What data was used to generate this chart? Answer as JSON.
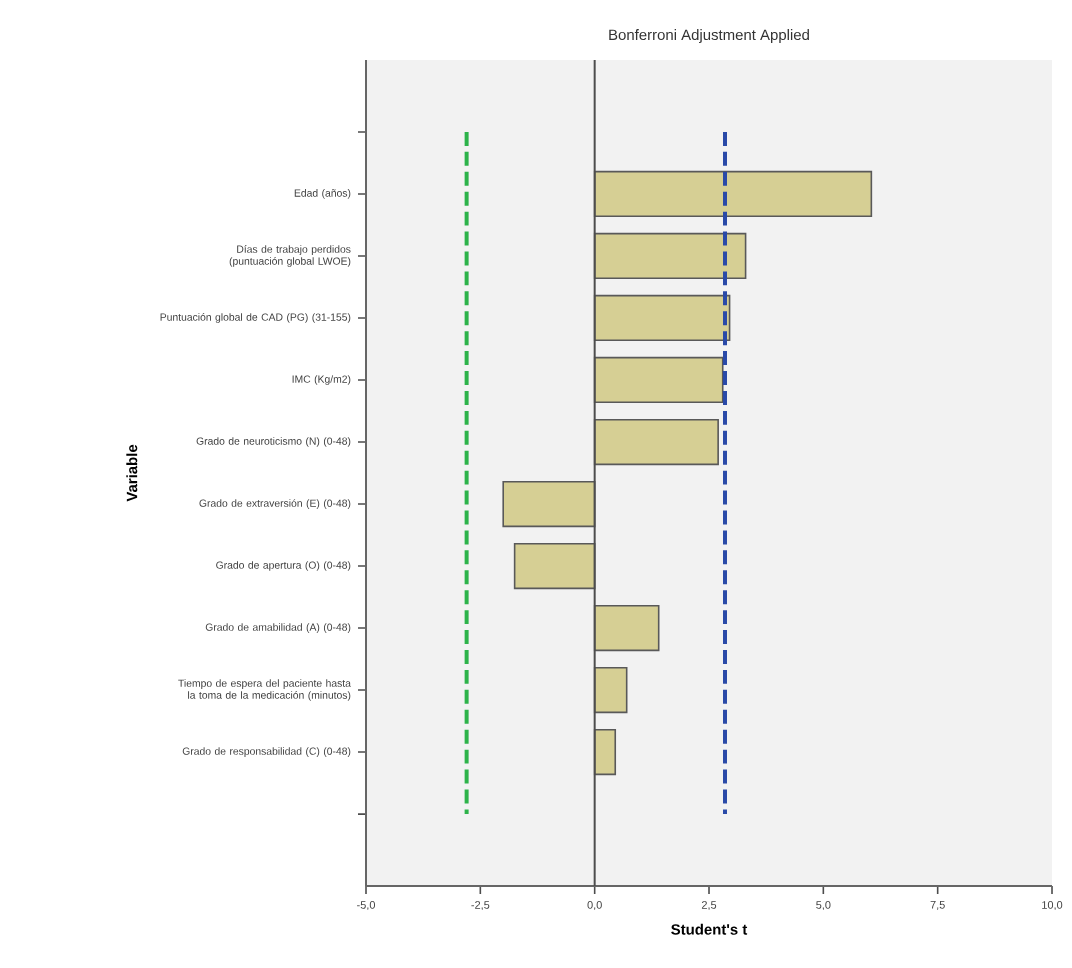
{
  "chart_data": {
    "type": "bar",
    "orientation": "horizontal",
    "title": "Bonferroni Adjustment Applied",
    "xlabel": "Student's t",
    "ylabel": "Variable",
    "categories": [
      null,
      "Edad (años)",
      "Días de trabajo perdidos (puntuación global LWOE)",
      "Puntuación global de CAD (PG) (31-155)",
      "IMC (Kg/m2)",
      "Grado de neuroticismo (N) (0-48)",
      "Grado de extraversión (E) (0-48)",
      "Grado de apertura (O) (0-48)",
      "Grado de amabilidad (A) (0-48)",
      "Tiempo de espera del paciente hasta la toma de la medicación (minutos)",
      "Grado de responsabilidad (C) (0-48)",
      null
    ],
    "values": [
      null,
      6.05,
      3.3,
      2.95,
      2.8,
      2.7,
      -2.0,
      -1.75,
      1.4,
      0.7,
      0.45,
      null
    ],
    "color": "#d6cf94",
    "xlim": [
      -5,
      10
    ],
    "xticks": [
      {
        "value": -5,
        "label": "-5,0"
      },
      {
        "value": -2.5,
        "label": "-2,5"
      },
      {
        "value": 0,
        "label": "0,0"
      },
      {
        "value": 2.5,
        "label": "2,5"
      },
      {
        "value": 5,
        "label": "5,0"
      },
      {
        "value": 7.5,
        "label": "7,5"
      },
      {
        "value": 10,
        "label": "10,0"
      }
    ],
    "ref_lines": [
      {
        "axis": "x",
        "value": 0,
        "color": "#4d4d4d",
        "line_style": "solid"
      },
      {
        "axis": "x",
        "value": -2.8,
        "color": "#2db34a",
        "line_style": "dashed"
      },
      {
        "axis": "x",
        "value": 2.85,
        "color": "#2a4aa8",
        "line_style": "dashed"
      }
    ],
    "grid": false
  }
}
